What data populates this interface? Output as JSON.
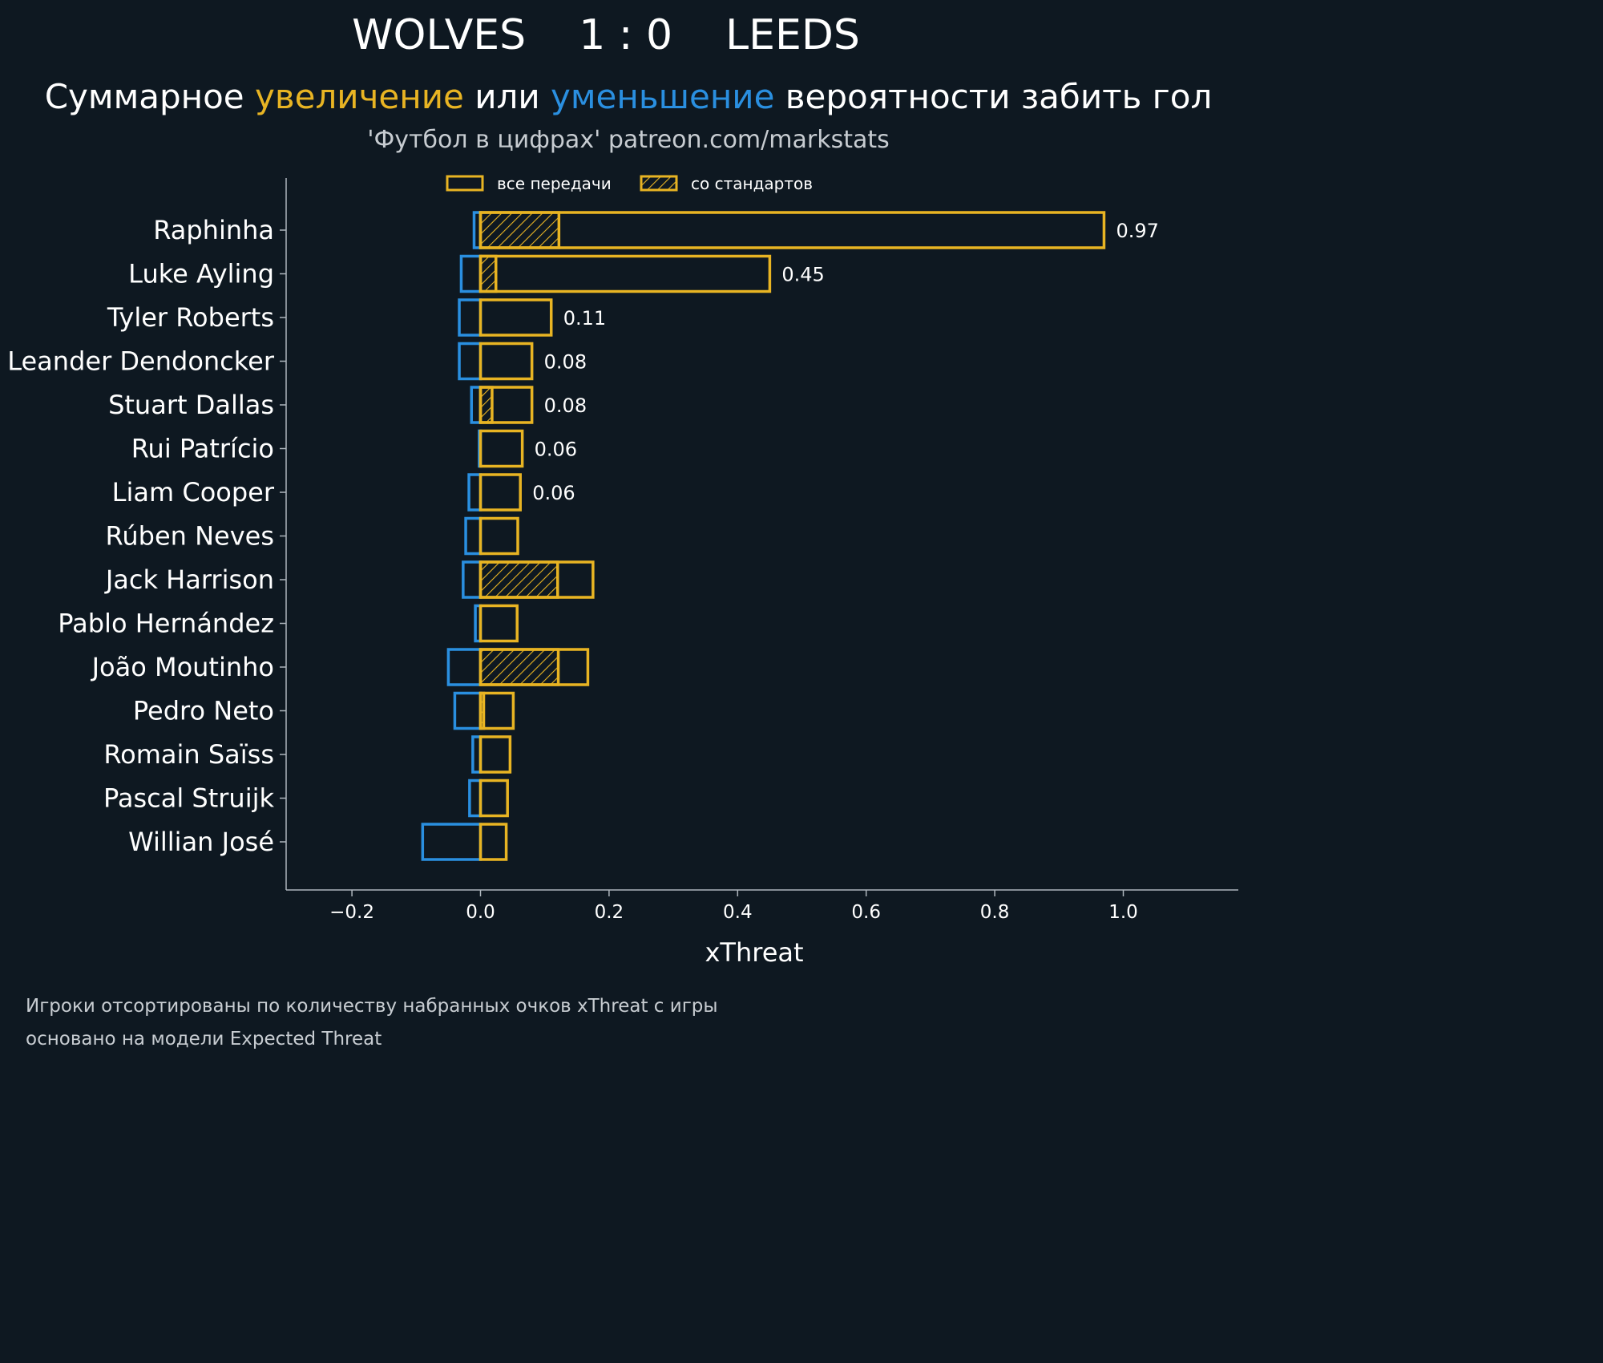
{
  "header": {
    "team_home": "WOLVES",
    "score": "1 : 0",
    "team_away": "LEEDS",
    "subtitle_part1": "Суммарное ",
    "subtitle_increase": "увеличение",
    "subtitle_part2": " или ",
    "subtitle_decrease": "уменьшение",
    "subtitle_part3": " вероятности забить гол",
    "credit": "'Футбол в цифрах' patreon.com/markstats"
  },
  "colors": {
    "background": "#0e1821",
    "increase": "#e8b423",
    "decrease": "#2a8fe0",
    "axis": "#aeb6bd",
    "text": "#ffffff",
    "muted": "#c7ccd1"
  },
  "legend": {
    "all_passes": "все передачи",
    "set_pieces": "со стандартов"
  },
  "chart_data": {
    "type": "bar",
    "orientation": "horizontal",
    "xlabel": "xThreat",
    "xlim": [
      -0.3,
      1.18
    ],
    "xticks": [
      -0.2,
      0.0,
      0.2,
      0.4,
      0.6,
      0.8,
      1.0
    ],
    "xtick_labels": [
      "−0.2",
      "0.0",
      "0.2",
      "0.4",
      "0.6",
      "0.8",
      "1.0"
    ],
    "grid": false,
    "legend_position": "top",
    "categories": [
      "Raphinha",
      "Luke Ayling",
      "Tyler Roberts",
      "Leander Dendoncker",
      "Stuart Dallas",
      "Rui Patrício",
      "Liam Cooper",
      "Rúben Neves",
      "Jack Harrison",
      "Pablo Hernández",
      "João Moutinho",
      "Pedro Neto",
      "Romain Saïss",
      "Pascal Struijk",
      "Willian José"
    ],
    "series": [
      {
        "name": "все передачи",
        "values": [
          0.97,
          0.45,
          0.11,
          0.08,
          0.08,
          0.065,
          0.062,
          0.058,
          0.175,
          0.057,
          0.167,
          0.051,
          0.046,
          0.042,
          0.04
        ]
      },
      {
        "name": "со стандартов",
        "values": [
          0.122,
          0.024,
          0.0,
          0.0,
          0.018,
          0.0,
          0.0,
          0.0,
          0.12,
          0.0,
          0.121,
          0.005,
          0.0,
          0.0,
          0.0
        ]
      },
      {
        "values": [
          -0.01,
          -0.03,
          -0.033,
          -0.033,
          -0.014,
          -0.002,
          -0.018,
          -0.023,
          -0.027,
          -0.008,
          -0.05,
          -0.04,
          -0.012,
          -0.017,
          -0.09
        ]
      }
    ],
    "value_labels": [
      "0.97",
      "0.45",
      "0.11",
      "0.08",
      "0.08",
      "0.06",
      "0.06",
      "",
      "",
      "",
      "",
      "",
      "",
      "",
      ""
    ]
  },
  "footer": {
    "line1": "Игроки отсортированы по количеству набранных очков xThreat с игры",
    "line2": "основано на модели Expected Threat"
  }
}
